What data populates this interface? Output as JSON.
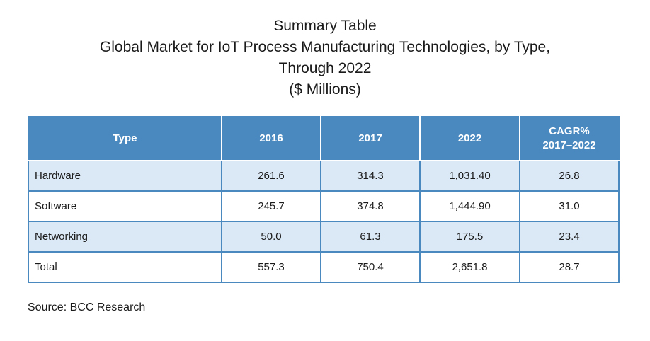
{
  "title": {
    "line1": "Summary Table",
    "line2": "Global Market for IoT Process Manufacturing Technologies, by Type,",
    "line3": "Through 2022",
    "line4": "($ Millions)"
  },
  "table": {
    "headers": {
      "type": "Type",
      "y2016": "2016",
      "y2017": "2017",
      "y2022": "2022",
      "cagr_line1": "CAGR%",
      "cagr_line2": "2017–2022"
    },
    "rows": [
      {
        "type": "Hardware",
        "y2016": "261.6",
        "y2017": "314.3",
        "y2022": "1,031.40",
        "cagr": "26.8"
      },
      {
        "type": "Software",
        "y2016": "245.7",
        "y2017": "374.8",
        "y2022": "1,444.90",
        "cagr": "31.0"
      },
      {
        "type": "Networking",
        "y2016": "50.0",
        "y2017": "61.3",
        "y2022": "175.5",
        "cagr": "23.4"
      },
      {
        "type": "Total",
        "y2016": "557.3",
        "y2017": "750.4",
        "y2022": "2,651.8",
        "cagr": "28.7"
      }
    ]
  },
  "source": "Source: BCC Research",
  "colors": {
    "header_bg": "#4a89c0",
    "shaded_row_bg": "#dbe9f6",
    "border": "#4a89c0"
  }
}
